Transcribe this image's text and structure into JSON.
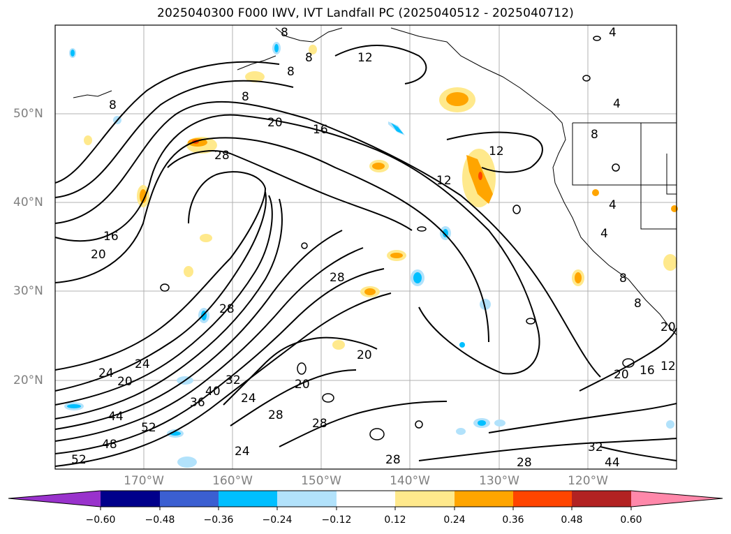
{
  "title": "2025040300 F000 IWV, IVT Landfall PC (2025040512 - 2025040712)",
  "map": {
    "lat_ticks": [
      "50°N",
      "40°N",
      "30°N",
      "20°N"
    ],
    "lon_ticks": [
      "170°W",
      "160°W",
      "150°W",
      "140°W",
      "130°W",
      "120°W"
    ],
    "extent": {
      "lon": [
        -180,
        -110
      ],
      "lat": [
        10,
        60
      ]
    },
    "grid": true,
    "contour_labels": [
      "8",
      "8",
      "8",
      "8",
      "12",
      "8",
      "20",
      "16",
      "12",
      "28",
      "12",
      "16",
      "20",
      "28",
      "28",
      "24",
      "20",
      "24",
      "20",
      "32",
      "40",
      "44",
      "52",
      "48",
      "52",
      "36",
      "24",
      "28",
      "24",
      "28",
      "20",
      "20",
      "16",
      "12",
      "20",
      "28",
      "32",
      "44",
      "28",
      "8",
      "4",
      "4",
      "4",
      "4",
      "8",
      "8"
    ]
  },
  "colorbar": {
    "labels": [
      "−0.60",
      "−0.48",
      "−0.36",
      "−0.24",
      "−0.12",
      "0.12",
      "0.24",
      "0.36",
      "0.48",
      "0.60"
    ],
    "colors": [
      "#9932cc",
      "#00008b",
      "#3b5fd1",
      "#00bfff",
      "#b2e2fb",
      "#ffffff",
      "#ffe98c",
      "#ffa500",
      "#ff4500",
      "#b22222",
      "#ff88aa"
    ]
  }
}
